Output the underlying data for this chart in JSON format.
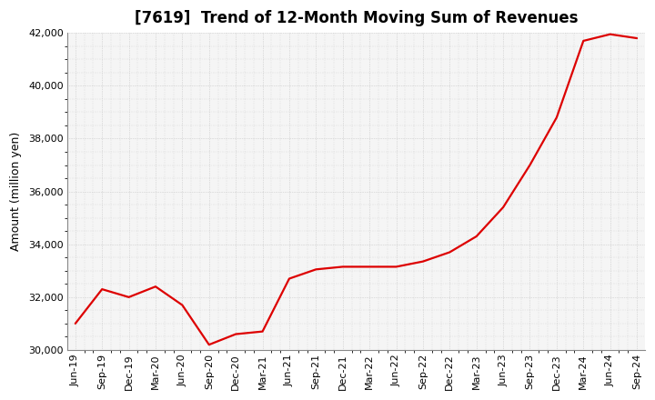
{
  "title": "[7619]  Trend of 12-Month Moving Sum of Revenues",
  "ylabel": "Amount (million yen)",
  "line_color": "#DD0000",
  "background_color": "#FFFFFF",
  "plot_bg_color": "#F5F5F5",
  "grid_color": "#AAAAAA",
  "ylim": [
    30000,
    42000
  ],
  "yticks": [
    30000,
    32000,
    34000,
    36000,
    38000,
    40000,
    42000
  ],
  "x_labels": [
    "Jun-19",
    "Sep-19",
    "Dec-19",
    "Mar-20",
    "Jun-20",
    "Sep-20",
    "Dec-20",
    "Mar-21",
    "Jun-21",
    "Sep-21",
    "Dec-21",
    "Mar-22",
    "Jun-22",
    "Sep-22",
    "Dec-22",
    "Mar-23",
    "Jun-23",
    "Sep-23",
    "Dec-23",
    "Mar-24",
    "Jun-24",
    "Sep-24"
  ],
  "values": [
    31000,
    32300,
    32000,
    32400,
    31700,
    30200,
    30600,
    30700,
    32700,
    33050,
    33150,
    33150,
    33150,
    33350,
    33700,
    34300,
    35400,
    37000,
    38800,
    41700,
    41950,
    41800
  ],
  "title_fontsize": 12,
  "ylabel_fontsize": 9,
  "tick_fontsize": 8
}
